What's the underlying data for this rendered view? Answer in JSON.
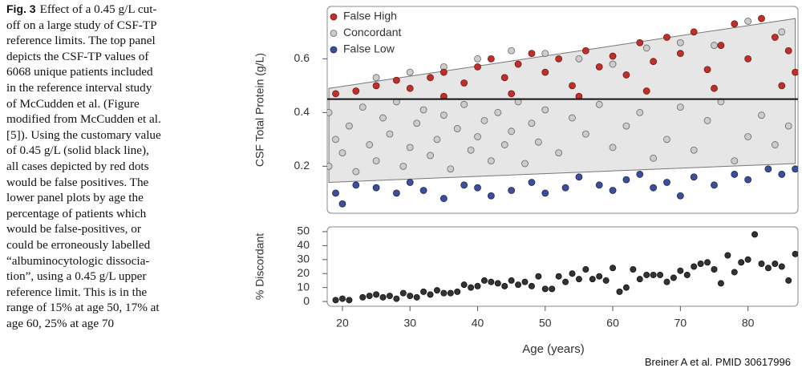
{
  "caption": {
    "label": "Fig. 3",
    "lines": [
      "Effect of a 0.45 g/L cut-",
      "off on a large study of CSF-TP",
      "reference limits. The top panel",
      "depicts the CSF-TP values of",
      "6068 unique patients included",
      "in the reference interval study",
      "of McCudden et al. (Figure",
      "modified from McCudden et al.",
      "[5]). Using the customary value",
      "of 0.45 g/L (solid black line),",
      "all cases depicted by red dots",
      "would be false positives. The",
      "lower panel plots by age the",
      "percentage of patients which",
      "would be false-positives, or",
      "could be erroneously labelled",
      "“albuminocytologic dissocia-",
      "tion”, using a 0.45 g/L upper",
      "reference limit. This is in the",
      "range of 15% at age 50, 17% at",
      "age 60, 25% at age 70"
    ]
  },
  "credit": "Breiner A et al.  PMID  30617996",
  "x_label": "Age (years)",
  "chart_data": [
    {
      "type": "scatter",
      "y_label": "CSF Total Protein (g/L)",
      "xlim": [
        17.75,
        87.4
      ],
      "ylim": [
        0.025,
        0.795
      ],
      "yticks": [
        0.2,
        0.4,
        0.6
      ],
      "legend": "upper left",
      "hline": 0.45,
      "band": {
        "x": [
          18,
          87
        ],
        "lower": [
          0.14,
          0.21
        ],
        "upper": [
          0.49,
          0.75
        ]
      },
      "series": [
        {
          "name": "False High",
          "color": "#c0302a",
          "x": [
            19,
            22,
            25,
            28,
            30,
            33,
            35,
            38,
            40,
            42,
            44,
            46,
            48,
            50,
            52,
            54,
            56,
            58,
            60,
            62,
            64,
            66,
            68,
            70,
            72,
            74,
            76,
            78,
            80,
            82,
            84,
            86,
            87,
            45,
            65,
            75,
            85,
            55,
            35
          ],
          "values": [
            0.47,
            0.48,
            0.5,
            0.52,
            0.49,
            0.53,
            0.55,
            0.51,
            0.57,
            0.6,
            0.53,
            0.58,
            0.62,
            0.55,
            0.6,
            0.5,
            0.63,
            0.57,
            0.61,
            0.54,
            0.66,
            0.59,
            0.68,
            0.62,
            0.7,
            0.56,
            0.65,
            0.73,
            0.6,
            0.75,
            0.68,
            0.63,
            0.55,
            0.47,
            0.48,
            0.49,
            0.5,
            0.46,
            0.46
          ]
        },
        {
          "name": "Concordant",
          "color": "#cccccc",
          "x": [
            18,
            18,
            19,
            20,
            21,
            22,
            23,
            24,
            25,
            26,
            27,
            28,
            29,
            30,
            31,
            32,
            33,
            34,
            35,
            36,
            37,
            38,
            39,
            40,
            41,
            42,
            43,
            44,
            45,
            46,
            47,
            48,
            49,
            50,
            52,
            54,
            56,
            58,
            60,
            62,
            64,
            66,
            68,
            70,
            72,
            74,
            76,
            78,
            80,
            82,
            84,
            86,
            40,
            45,
            50,
            55,
            60,
            65,
            70,
            75,
            80,
            85,
            30,
            35,
            25
          ],
          "values": [
            0.2,
            0.4,
            0.3,
            0.25,
            0.35,
            0.18,
            0.42,
            0.28,
            0.22,
            0.38,
            0.32,
            0.44,
            0.2,
            0.27,
            0.36,
            0.41,
            0.24,
            0.3,
            0.39,
            0.19,
            0.34,
            0.43,
            0.26,
            0.31,
            0.37,
            0.22,
            0.4,
            0.28,
            0.33,
            0.44,
            0.21,
            0.36,
            0.29,
            0.41,
            0.25,
            0.38,
            0.32,
            0.43,
            0.27,
            0.35,
            0.4,
            0.23,
            0.3,
            0.42,
            0.26,
            0.37,
            0.44,
            0.22,
            0.31,
            0.39,
            0.28,
            0.35,
            0.6,
            0.63,
            0.62,
            0.6,
            0.58,
            0.64,
            0.66,
            0.65,
            0.74,
            0.7,
            0.55,
            0.57,
            0.53
          ]
        },
        {
          "name": "False Low",
          "color": "#3b4f9c",
          "x": [
            19,
            20,
            22,
            25,
            28,
            30,
            32,
            35,
            38,
            40,
            42,
            45,
            48,
            50,
            53,
            55,
            58,
            60,
            62,
            64,
            66,
            68,
            70,
            72,
            75,
            78,
            80,
            83,
            85,
            87
          ],
          "values": [
            0.1,
            0.06,
            0.13,
            0.12,
            0.1,
            0.14,
            0.11,
            0.08,
            0.13,
            0.12,
            0.09,
            0.11,
            0.14,
            0.1,
            0.12,
            0.16,
            0.13,
            0.11,
            0.15,
            0.17,
            0.12,
            0.14,
            0.09,
            0.16,
            0.13,
            0.17,
            0.15,
            0.19,
            0.17,
            0.19
          ]
        }
      ]
    },
    {
      "type": "scatter",
      "y_label": "% Discordant",
      "xlim": [
        17.75,
        87.4
      ],
      "ylim": [
        -3.4,
        53.4
      ],
      "xticks": [
        20,
        30,
        40,
        50,
        60,
        70,
        80
      ],
      "yticks": [
        0,
        10,
        20,
        30,
        40,
        50
      ],
      "color": "#333333",
      "x": [
        19,
        20,
        21,
        23,
        24,
        25,
        26,
        27,
        28,
        29,
        30,
        31,
        32,
        33,
        34,
        35,
        36,
        37,
        38,
        39,
        40,
        41,
        42,
        43,
        44,
        45,
        46,
        47,
        48,
        49,
        50,
        51,
        52,
        53,
        54,
        55,
        56,
        57,
        58,
        59,
        60,
        61,
        62,
        63,
        64,
        65,
        66,
        67,
        68,
        69,
        70,
        71,
        72,
        73,
        74,
        75,
        76,
        77,
        78,
        79,
        80,
        81,
        82,
        83,
        84,
        85,
        86,
        87
      ],
      "values": [
        1,
        2,
        1,
        3,
        4,
        5,
        3,
        4,
        2,
        6,
        4,
        3,
        7,
        5,
        8,
        6,
        6,
        7,
        12,
        10,
        11,
        15,
        14,
        13,
        11,
        15,
        12,
        14,
        11,
        18,
        9,
        9,
        18,
        14,
        20,
        16,
        23,
        16,
        18,
        15,
        24,
        7,
        10,
        23,
        16,
        19,
        19,
        19,
        14,
        17,
        22,
        19,
        25,
        27,
        28,
        23,
        13,
        33,
        21,
        28,
        30,
        48,
        27,
        24,
        27,
        25,
        15,
        34
      ]
    }
  ]
}
